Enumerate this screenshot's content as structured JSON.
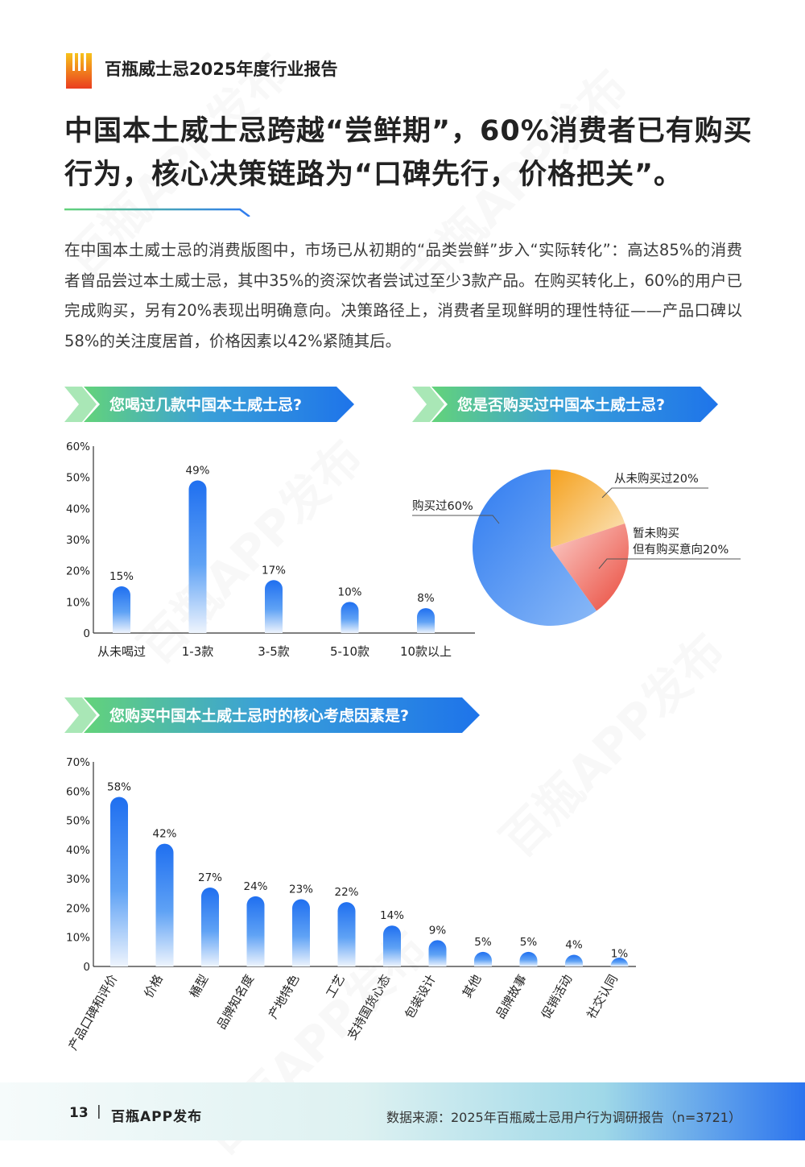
{
  "header": {
    "report_title": "百瓶威士忌2025年度行业报告"
  },
  "headline": {
    "line1": "中国本土威士忌跨越“尝鲜期”，60%消费者已有购买",
    "line2": "行为，核心决策链路为“口碑先行，价格把关”。"
  },
  "body_text": "在中国本土威士忌的消费版图中，市场已从初期的“品类尝鲜”步入“实际转化”：高达85%的消费者曾品尝过本土威士忌，其中35%的资深饮者尝试过至少3款产品。在购买转化上，60%的用户已完成购买，另有20%表现出明确意向。决策路径上，消费者呈现鲜明的理性特征——产品口碑以58%的关注度居首，价格因素以42%紧随其后。",
  "watermark": "百瓶APP发布",
  "colors": {
    "accent_blue": "#2f7bf0",
    "accent_green": "#63d37a",
    "pie_blue": "#2f7bf0",
    "pie_orange": "#f5a623",
    "pie_red": "#ea4a3c"
  },
  "sections": {
    "q1": "您喝过几款中国本土威士忌?",
    "q2": "您是否购买过中国本土威士忌?",
    "q3": "您购买中国本土威士忌时的核心考虑因素是?"
  },
  "chart_data": [
    {
      "type": "bar",
      "title": "您喝过几款中国本土威士忌?",
      "categories": [
        "从未喝过",
        "1-3款",
        "3-5款",
        "5-10款",
        "10款以上"
      ],
      "values": [
        15,
        49,
        17,
        10,
        8
      ],
      "value_labels": [
        "15%",
        "49%",
        "17%",
        "10%",
        "8%"
      ],
      "ylim": [
        0,
        60
      ],
      "yticks": [
        "0",
        "10%",
        "20%",
        "30%",
        "40%",
        "50%",
        "60%"
      ]
    },
    {
      "type": "pie",
      "title": "您是否购买过中国本土威士忌?",
      "slices": [
        {
          "label": "从未购买过20%",
          "value": 20,
          "color": "#f5a623"
        },
        {
          "label_lines": [
            "暂未购买",
            "但有购买意向20%"
          ],
          "value": 20,
          "color": "#ea4a3c"
        },
        {
          "label": "购买过60%",
          "value": 60,
          "color": "#2f7bf0"
        }
      ]
    },
    {
      "type": "bar",
      "title": "您购买中国本土威士忌时的核心考虑因素是?",
      "categories": [
        "产品口碑和评价",
        "价格",
        "桶型",
        "品牌知名度",
        "产地特色",
        "工艺",
        "支持国货心态",
        "包装设计",
        "其他",
        "品牌故事",
        "促销活动",
        "社交认同"
      ],
      "values": [
        58,
        42,
        27,
        24,
        23,
        22,
        14,
        9,
        5,
        5,
        4,
        1
      ],
      "value_labels": [
        "58%",
        "42%",
        "27%",
        "24%",
        "23%",
        "22%",
        "14%",
        "9%",
        "5%",
        "5%",
        "4%",
        "1%"
      ],
      "ylim": [
        0,
        70
      ],
      "yticks": [
        "0",
        "10%",
        "20%",
        "30%",
        "40%",
        "50%",
        "60%",
        "70%"
      ]
    }
  ],
  "footer": {
    "page_number": "13",
    "separator": "|",
    "publisher": "百瓶APP发布",
    "source": "数据来源：2025年百瓶威士忌用户行为调研报告（n=3721）"
  }
}
